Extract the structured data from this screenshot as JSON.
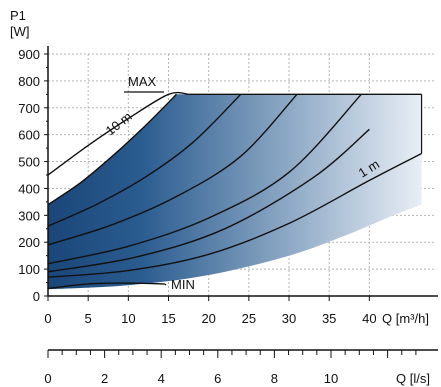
{
  "chart_data": {
    "type": "line",
    "ylabel_lines": [
      "P1",
      "[W]"
    ],
    "xlabel_flow_m3h": "Q [m³/h]",
    "xlabel_flow_ls": "Q [l/s]",
    "ylim": [
      0,
      900
    ],
    "yticks": [
      0,
      100,
      200,
      300,
      400,
      500,
      600,
      700,
      800,
      900
    ],
    "xlim_m3h": [
      0,
      45
    ],
    "xticks_m3h": [
      0,
      5,
      10,
      15,
      20,
      25,
      30,
      35,
      40
    ],
    "xticks_ls": [
      0,
      2,
      4,
      6,
      8,
      10
    ],
    "grid": true,
    "fill_gradient": {
      "dark": "#1a4679",
      "light": "#e8eef5"
    },
    "operating_area": {
      "upper_envelope": [
        [
          0,
          340
        ],
        [
          4,
          420
        ],
        [
          8,
          520
        ],
        [
          12,
          630
        ],
        [
          16,
          750
        ],
        [
          46.5,
          750
        ]
      ],
      "lower_envelope": [
        [
          0,
          25
        ],
        [
          10,
          40
        ],
        [
          20,
          78
        ],
        [
          30,
          150
        ],
        [
          37,
          225
        ],
        [
          43,
          300
        ],
        [
          46.5,
          340
        ],
        [
          46.5,
          750
        ]
      ]
    },
    "series": [
      {
        "name": "MAX",
        "x": [
          0,
          5,
          10,
          15,
          17.5
        ],
        "y": [
          450,
          560,
          660,
          750,
          750
        ]
      },
      {
        "name": "10 m",
        "x": [
          0,
          4,
          8,
          12,
          16
        ],
        "y": [
          340,
          420,
          520,
          630,
          750
        ]
      },
      {
        "name": "",
        "x": [
          0,
          6,
          12,
          18,
          24
        ],
        "y": [
          260,
          340,
          440,
          570,
          750
        ]
      },
      {
        "name": "",
        "x": [
          0,
          8,
          16,
          24,
          31
        ],
        "y": [
          190,
          265,
          370,
          520,
          750
        ]
      },
      {
        "name": "",
        "x": [
          0,
          10,
          20,
          30,
          39
        ],
        "y": [
          120,
          185,
          290,
          460,
          750
        ]
      },
      {
        "name": "",
        "x": [
          0,
          11,
          22,
          33,
          40
        ],
        "y": [
          90,
          145,
          250,
          440,
          620
        ]
      },
      {
        "name": "1 m",
        "x": [
          0,
          10,
          20,
          30,
          40,
          46.5
        ],
        "y": [
          70,
          95,
          155,
          270,
          430,
          530
        ]
      },
      {
        "name": "MIN",
        "x": [
          0,
          5,
          10,
          14.5
        ],
        "y": [
          28,
          45,
          48,
          45
        ]
      }
    ],
    "annotations": [
      {
        "text": "MAX",
        "x": 13.5,
        "y": 795
      },
      {
        "text": "10 m",
        "x": 9.5,
        "y": 620
      },
      {
        "text": "1 m",
        "x": 41.5,
        "y": 465
      },
      {
        "text": "MIN",
        "x": 15.5,
        "y": 40
      }
    ]
  }
}
